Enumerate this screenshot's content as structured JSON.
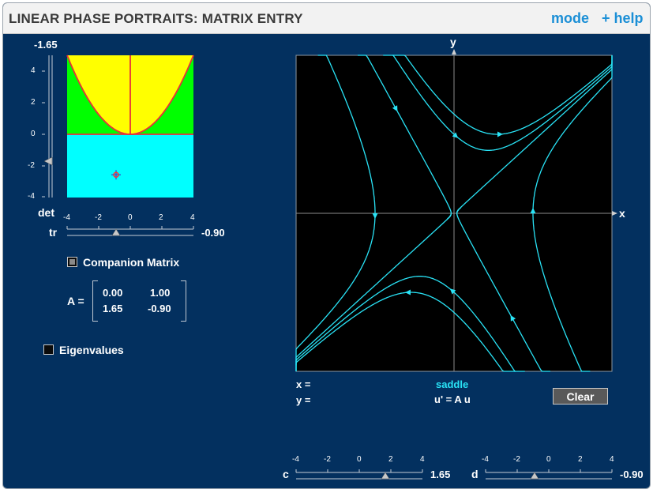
{
  "header": {
    "title": "LINEAR PHASE PORTRAITS: MATRIX ENTRY",
    "mode_label": "mode",
    "help_label": "+ help"
  },
  "trace_det_plane": {
    "det_value": "-1.65",
    "det_label": "det",
    "det_ticks": [
      "4",
      "2",
      "0",
      "-2",
      "-4"
    ],
    "tr_label": "tr",
    "tr_value": "-0.90",
    "tr_ticks": [
      "-4",
      "-2",
      "0",
      "2",
      "4"
    ],
    "point": {
      "tr": -0.9,
      "det": -1.65
    },
    "colors": {
      "upper": "#ffff00",
      "between": "#00ff00",
      "lower": "#00ffff",
      "curve": "#e8303a"
    }
  },
  "companion": {
    "label": "Companion Matrix",
    "checked": false
  },
  "matrix": {
    "label": "A =",
    "a": "0.00",
    "b": "1.00",
    "c": "1.65",
    "d": "-0.90"
  },
  "eigenvalues": {
    "label": "Eigenvalues",
    "checked": false
  },
  "phase_plot": {
    "x_axis_label": "x",
    "y_axis_label": "y",
    "x_readout_label": "x =",
    "y_readout_label": "y =",
    "type_label": "saddle",
    "equation": "u' = A u",
    "trajectory_color": "#29e3f6"
  },
  "clear_button": {
    "label": "Clear"
  },
  "sliders": {
    "c": {
      "label": "c",
      "value": "1.65",
      "ticks": [
        "-4",
        "-2",
        "0",
        "2",
        "4"
      ],
      "numeric": 1.65
    },
    "d": {
      "label": "d",
      "value": "-0.90",
      "ticks": [
        "-4",
        "-2",
        "0",
        "2",
        "4"
      ],
      "numeric": -0.9
    }
  }
}
